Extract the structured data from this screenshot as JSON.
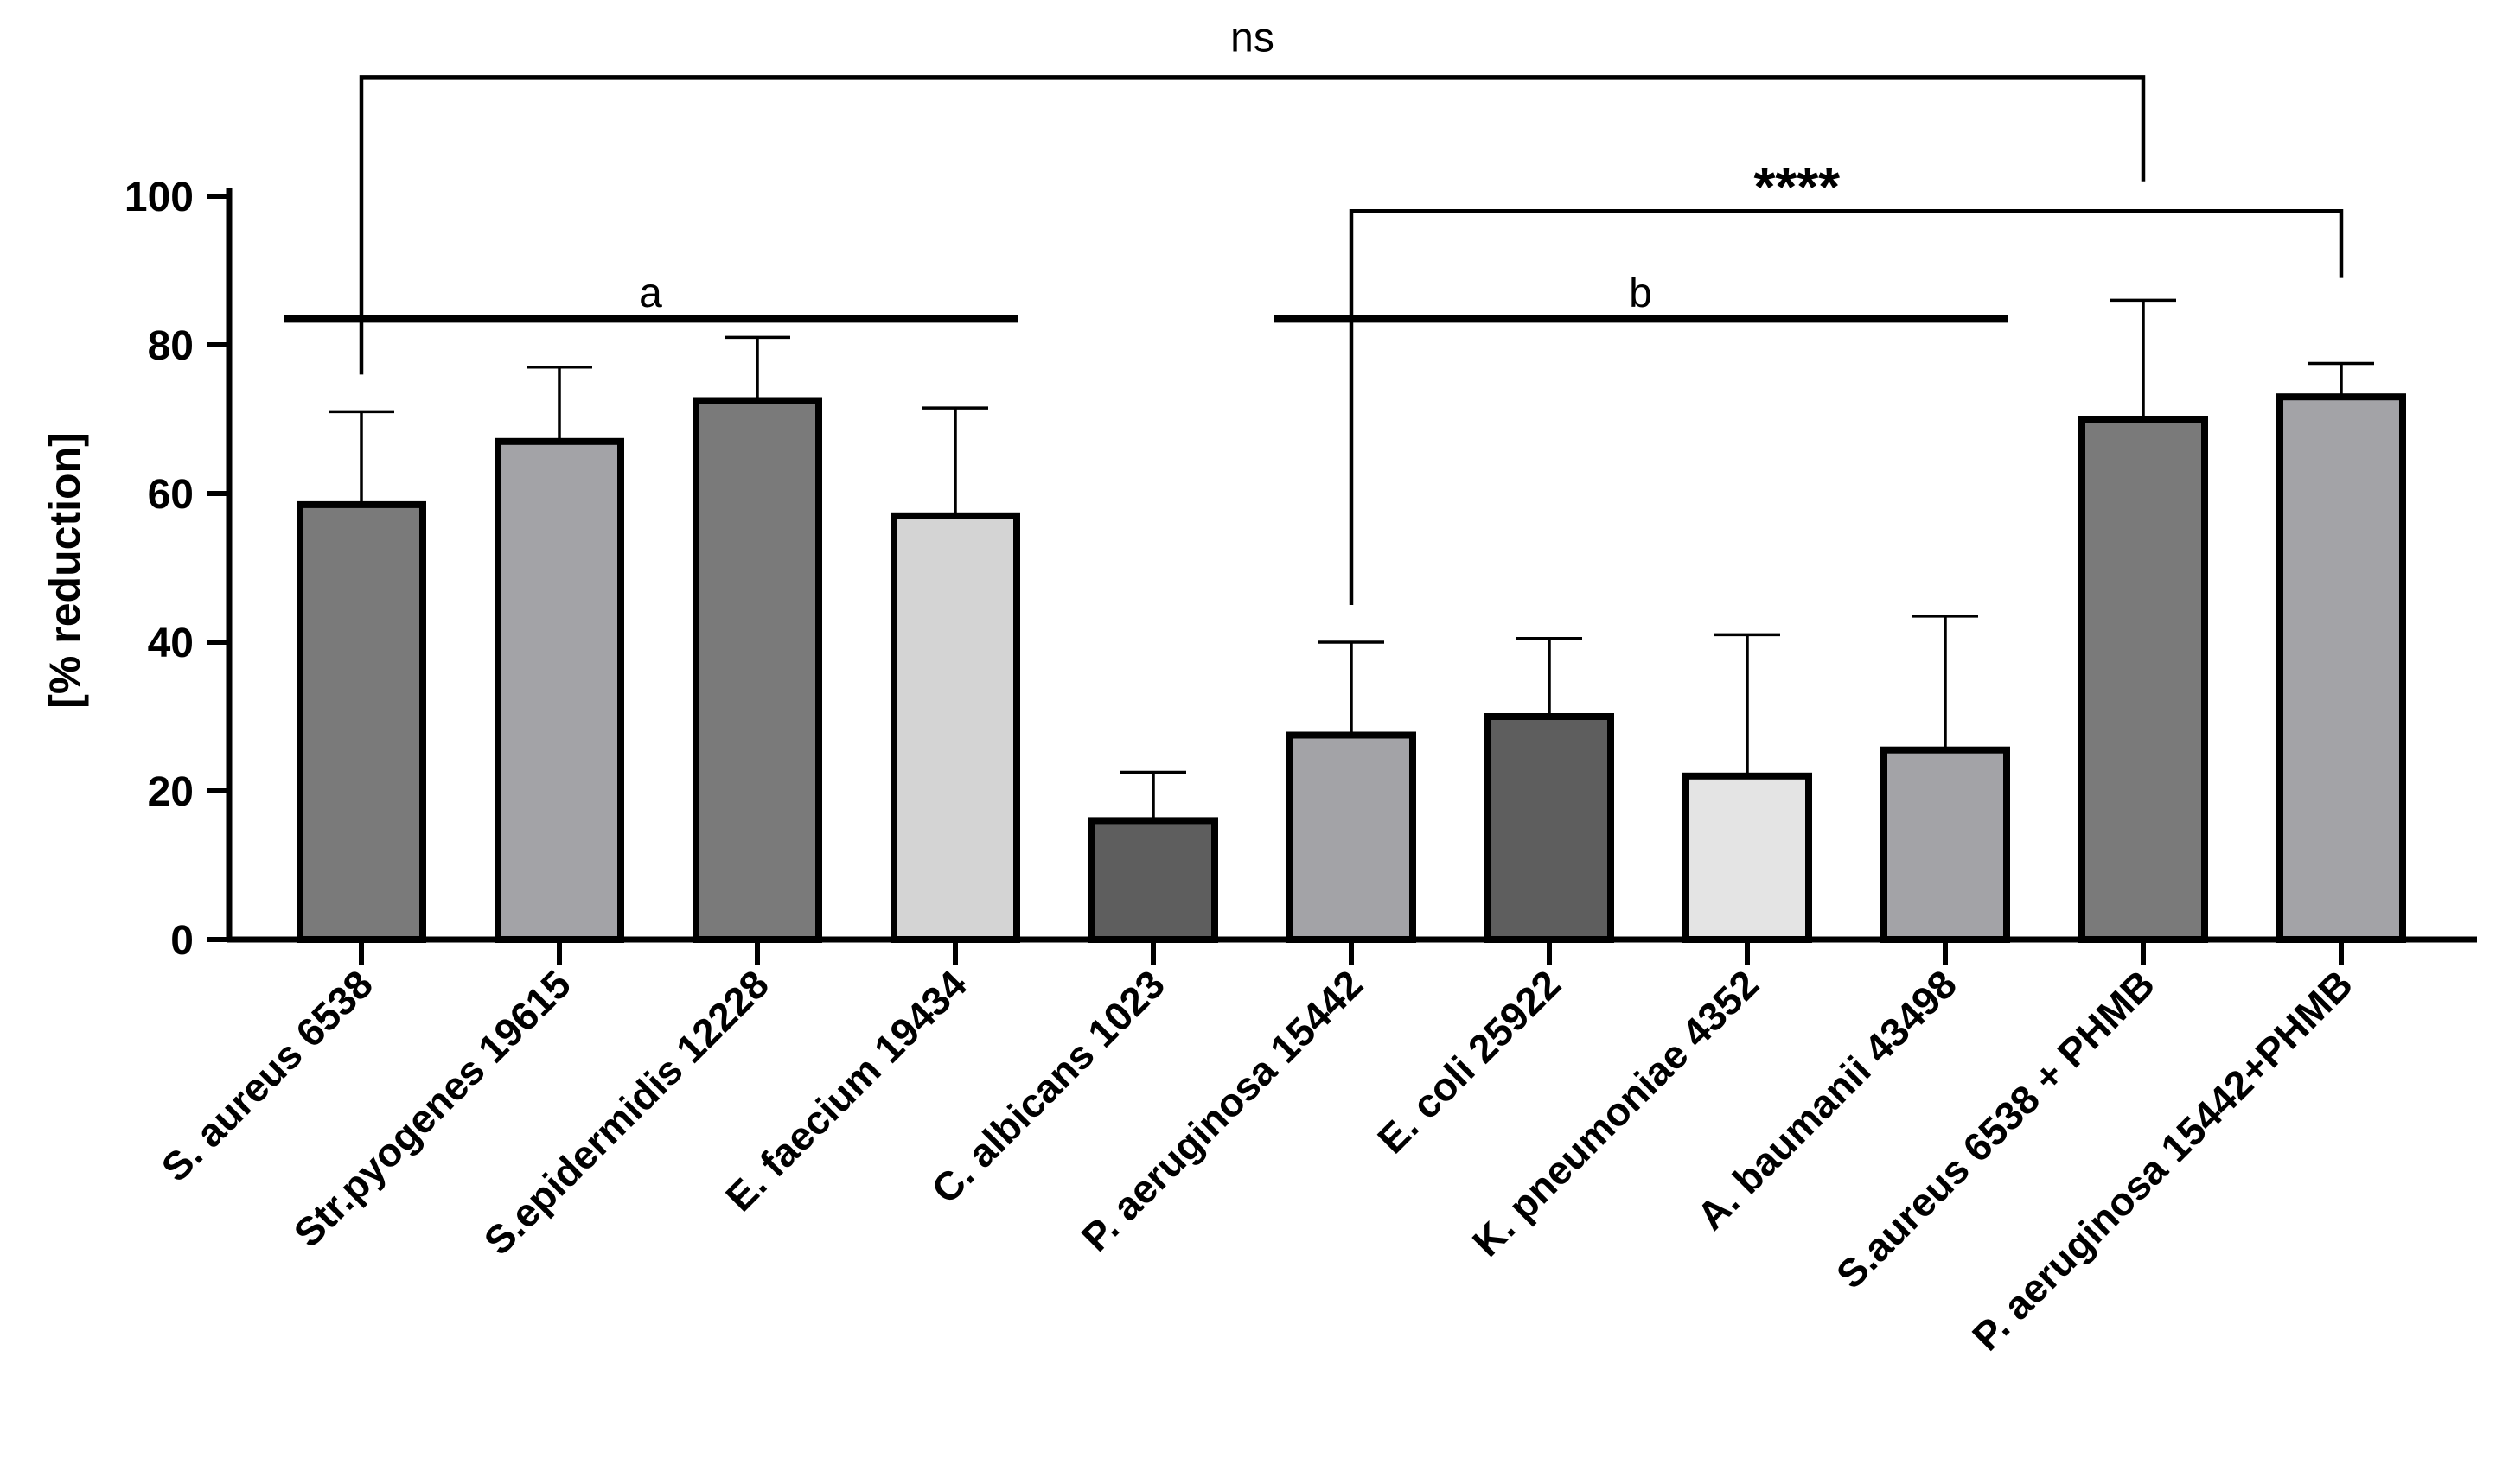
{
  "chart_data": {
    "type": "bar",
    "title": "",
    "xlabel": "",
    "ylabel": "[% reduction]",
    "ylim": [
      0,
      100
    ],
    "yticks": [
      0,
      20,
      40,
      60,
      80,
      100
    ],
    "categories": [
      "S. aureus 6538",
      "Str.pyogenes 19615",
      "S.epidermidis 12228",
      "E. faecium 19434",
      "C. albicans 1023",
      "P. aeruginosa 15442",
      "E. coli 25922",
      "K. pneumoniae 4352",
      "A. baumanii 43498",
      "S.aureus 6538 + PHMB",
      "P. aeruginosa 15442+PHMB"
    ],
    "values": [
      58.5,
      67.0,
      72.5,
      57.0,
      16.0,
      27.5,
      30.0,
      22.0,
      25.5,
      70.0,
      73.0
    ],
    "error_upper": [
      71.0,
      77.0,
      81.0,
      71.5,
      22.5,
      40.0,
      40.5,
      41.0,
      43.5,
      86.0,
      77.5
    ],
    "colors": [
      "#7a7a7a",
      "#a3a3a7",
      "#7a7a7a",
      "#d4d4d4",
      "#5e5e5e",
      "#a3a3a7",
      "#5e5e5e",
      "#e4e4e4",
      "#a3a3a7",
      "#7a7a7a",
      "#a3a3a7"
    ],
    "group_lines": [
      {
        "label": "a",
        "from_index": 0,
        "to_index": 3,
        "y_value": 83.5
      },
      {
        "label": "b",
        "from_index": 5,
        "to_index": 8,
        "y_value": 83.5
      }
    ],
    "significance_brackets": [
      {
        "label": "ns",
        "from_index": 0,
        "to_index": 9,
        "y_value": 116,
        "left_drop_to": 76,
        "right_drop_to": 102
      },
      {
        "label": "****",
        "from_index": 5,
        "to_index": 10,
        "y_value": 98,
        "left_drop_to": 45,
        "right_drop_to": 89
      }
    ]
  }
}
